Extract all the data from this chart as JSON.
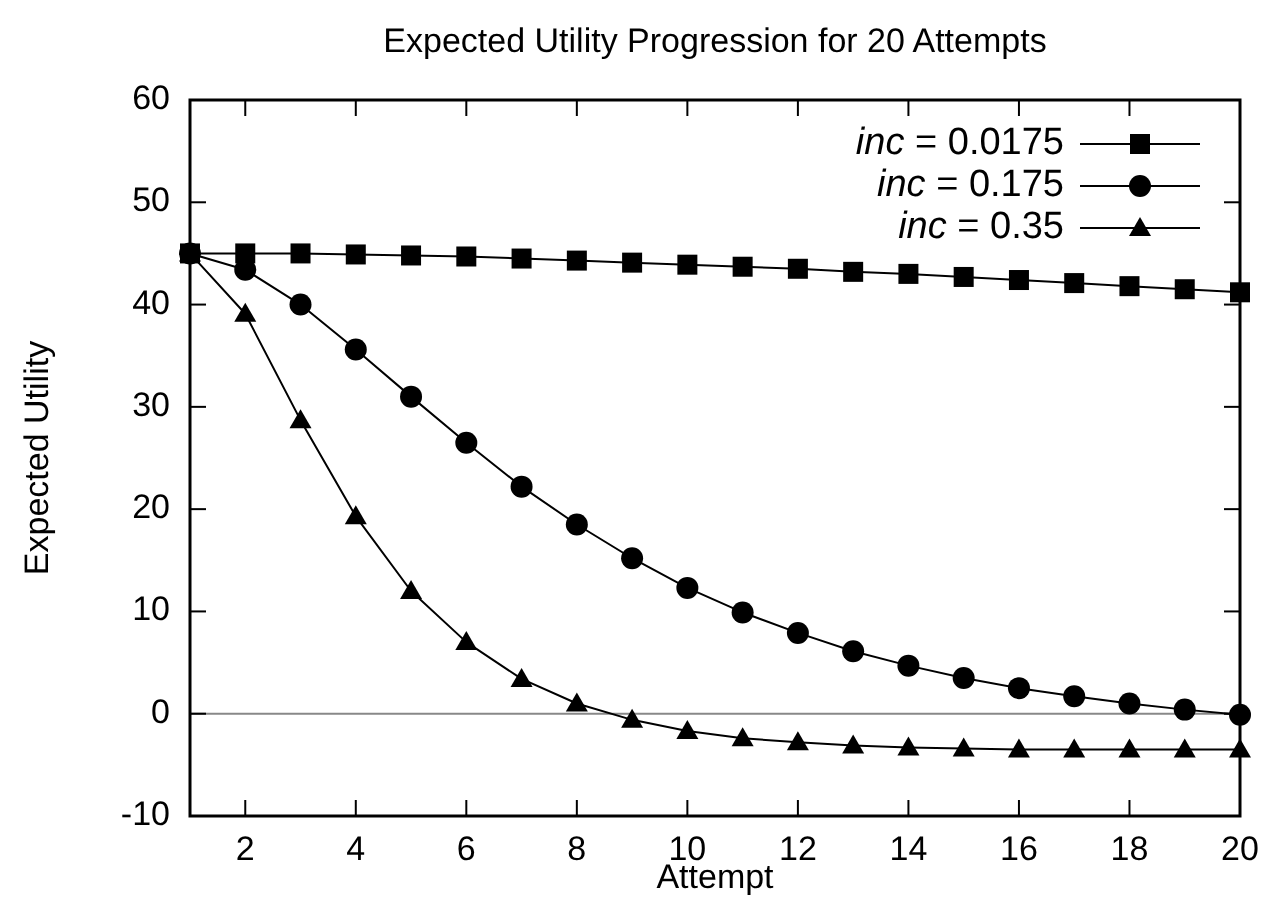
{
  "chart_data": {
    "type": "line",
    "title": "Expected Utility Progression for 20 Attempts",
    "xlabel": "Attempt",
    "ylabel": "Expected Utility",
    "x": [
      1,
      2,
      3,
      4,
      5,
      6,
      7,
      8,
      9,
      10,
      11,
      12,
      13,
      14,
      15,
      16,
      17,
      18,
      19,
      20
    ],
    "series": [
      {
        "name": "inc = 0.0175",
        "color": "#000000",
        "marker": "square",
        "values": [
          45,
          45,
          45,
          44.9,
          44.8,
          44.7,
          44.5,
          44.3,
          44.1,
          43.9,
          43.7,
          43.5,
          43.2,
          43,
          42.7,
          42.4,
          42.1,
          41.8,
          41.5,
          41.2
        ]
      },
      {
        "name": "inc = 0.175",
        "color": "#000000",
        "marker": "circle",
        "values": [
          45,
          43.4,
          40,
          35.6,
          31,
          26.5,
          22.2,
          18.5,
          15.2,
          12.3,
          9.9,
          7.9,
          6.1,
          4.7,
          3.5,
          2.5,
          1.7,
          1,
          0.4,
          -0.1
        ]
      },
      {
        "name": "inc = 0.35",
        "color": "#000000",
        "marker": "triangle",
        "values": [
          45,
          39.1,
          28.7,
          19.3,
          12,
          7,
          3.4,
          1,
          -0.6,
          -1.7,
          -2.4,
          -2.8,
          -3.1,
          -3.3,
          -3.4,
          -3.5,
          -3.5,
          -3.5,
          -3.5,
          -3.5
        ]
      }
    ],
    "xlim": [
      1,
      20
    ],
    "xticks": [
      2,
      4,
      6,
      8,
      10,
      12,
      14,
      16,
      18,
      20
    ],
    "ylim": [
      -10,
      60
    ],
    "yticks": [
      -10,
      0,
      10,
      20,
      30,
      40,
      50,
      60
    ],
    "ref_lines": [
      {
        "axis": "y",
        "value": 0,
        "color": "#888888"
      }
    ],
    "grid": false,
    "legend": "top right",
    "line_style": "solid"
  }
}
